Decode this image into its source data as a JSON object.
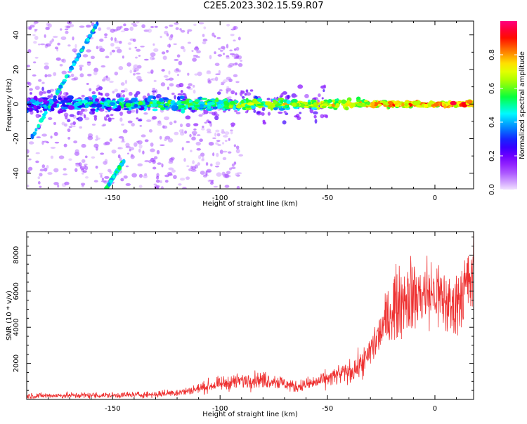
{
  "title": "C2E5.2023.302.15.59.R07",
  "chart_data": [
    {
      "type": "heatmap",
      "xlabel": "Height of straight line (km)",
      "ylabel": "Frequency (Hz)",
      "xlim": [
        -190,
        18
      ],
      "ylim": [
        -49,
        48
      ],
      "x_ticks": [
        -150,
        -100,
        -50,
        0
      ],
      "y_ticks": [
        -40,
        -20,
        0,
        20,
        40
      ],
      "colorbar": {
        "label": "Normalized spectral amplitude",
        "range": [
          0,
          1
        ],
        "ticks": [
          0.0,
          0.2,
          0.4,
          0.6,
          0.8
        ],
        "colors": [
          "#f0e0ff",
          "#b060ff",
          "#8000ff",
          "#2000ff",
          "#0080ff",
          "#00ffff",
          "#00ff40",
          "#a0ff00",
          "#ffff00",
          "#ff8000",
          "#ff0000",
          "#ff0080"
        ]
      },
      "features": [
        {
          "description": "main echo band",
          "x": [
            -190,
            18
          ],
          "y": [
            0,
            0
          ],
          "amplitude": [
            0.15,
            0.9
          ]
        },
        {
          "description": "diagonal streak",
          "x": [
            -188,
            -157
          ],
          "y": [
            -20,
            47
          ]
        },
        {
          "description": "diagonal streak",
          "x": [
            -153,
            -145
          ],
          "y": [
            -49,
            -33
          ]
        }
      ]
    },
    {
      "type": "line",
      "xlabel": "Height of straight line (km)",
      "ylabel": "SNR (10 * v/v)",
      "xlim": [
        -190,
        18
      ],
      "ylim": [
        0,
        9300
      ],
      "x_ticks": [
        -150,
        -100,
        -50,
        0
      ],
      "y_ticks": [
        2000,
        4000,
        6000,
        8000
      ],
      "series": [
        {
          "color": "#ee3030",
          "x": [
            -190,
            -170,
            -150,
            -130,
            -115,
            -105,
            -95,
            -85,
            -75,
            -65,
            -55,
            -45,
            -38,
            -32,
            -28,
            -24,
            -20,
            -16,
            -12,
            -8,
            -4,
            0,
            4,
            8,
            12,
            16,
            18
          ],
          "values": [
            200,
            220,
            230,
            280,
            450,
            750,
            950,
            1100,
            1050,
            700,
            950,
            1350,
            1600,
            2200,
            3200,
            4000,
            5000,
            5600,
            5800,
            5700,
            5900,
            5800,
            5500,
            5000,
            5900,
            6500,
            7000
          ]
        }
      ]
    }
  ]
}
